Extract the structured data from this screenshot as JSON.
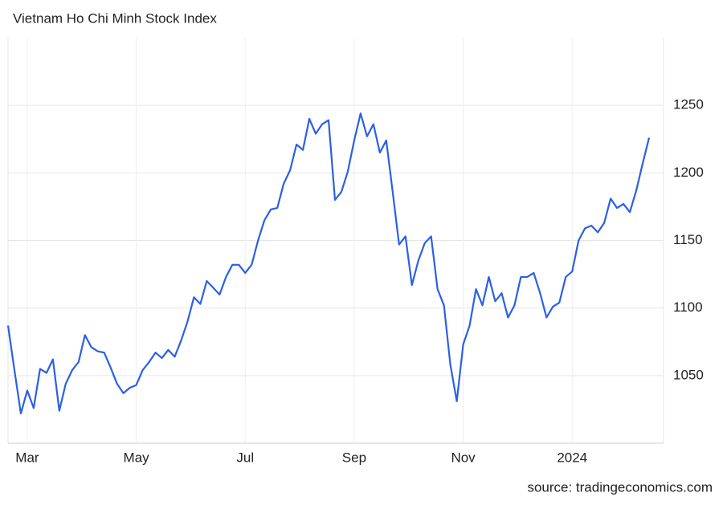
{
  "chart_data": {
    "type": "line",
    "title": "Vietnam Ho Chi Minh Stock Index",
    "source": "source: tradingeconomics.com",
    "categories": [
      null,
      null,
      null,
      "Mar",
      null,
      null,
      null,
      null,
      null,
      null,
      null,
      null,
      null,
      null,
      null,
      null,
      null,
      null,
      null,
      null,
      "May",
      null,
      null,
      null,
      null,
      null,
      null,
      null,
      null,
      null,
      null,
      null,
      null,
      null,
      null,
      null,
      null,
      "Jul",
      null,
      null,
      null,
      null,
      null,
      null,
      null,
      null,
      null,
      null,
      null,
      null,
      null,
      null,
      null,
      null,
      "Sep",
      null,
      null,
      null,
      null,
      null,
      null,
      null,
      null,
      null,
      null,
      null,
      null,
      null,
      null,
      null,
      null,
      "Nov",
      null,
      null,
      null,
      null,
      null,
      null,
      null,
      null,
      null,
      null,
      null,
      null,
      null,
      null,
      null,
      null,
      "2024",
      null,
      null,
      null,
      null,
      null,
      null,
      null,
      null,
      null,
      null,
      null,
      null
    ],
    "series": [
      {
        "name": "Vietnam Ho Chi Minh Stock Index",
        "color": "#2b5fe6",
        "values": [
          1087,
          1054,
          1022,
          1039,
          1026,
          1055,
          1052,
          1062,
          1024,
          1044,
          1054,
          1060,
          1080,
          1071,
          1068,
          1067,
          1056,
          1044,
          1037,
          1041,
          1043,
          1054,
          1060,
          1067,
          1063,
          1069,
          1064,
          1076,
          1090,
          1108,
          1103,
          1120,
          1115,
          1110,
          1123,
          1132,
          1132,
          1126,
          1132,
          1150,
          1165,
          1173,
          1174,
          1192,
          1202,
          1221,
          1217,
          1240,
          1229,
          1236,
          1239,
          1180,
          1186,
          1201,
          1224,
          1244,
          1227,
          1236,
          1215,
          1224,
          1186,
          1147,
          1153,
          1117,
          1135,
          1148,
          1153,
          1114,
          1102,
          1058,
          1031,
          1073,
          1087,
          1114,
          1102,
          1123,
          1105,
          1111,
          1093,
          1102,
          1123,
          1123,
          1126,
          1111,
          1093,
          1101,
          1104,
          1123,
          1127,
          1150,
          1159,
          1161,
          1156,
          1163,
          1181,
          1174,
          1177,
          1171,
          1187,
          1207,
          1226
        ]
      }
    ],
    "ylim": [
      1000,
      1300
    ],
    "yticks": [
      1050,
      1100,
      1150,
      1200,
      1250
    ],
    "grid": true
  }
}
